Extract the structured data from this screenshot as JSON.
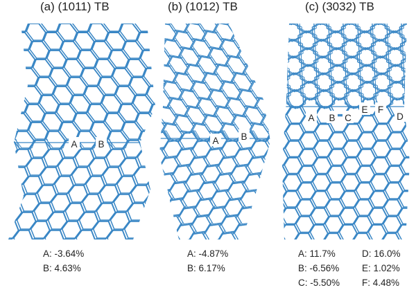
{
  "colors": {
    "lattice": "#3a87c5",
    "label_fill": "#ffffff",
    "text": "#222222"
  },
  "panels": [
    {
      "title_prefix": "(a) (10",
      "title_bar": "1",
      "title_suffix": "1) TB",
      "site_labels": [
        "A",
        "B"
      ],
      "strains": [
        "A: -3.64%",
        "B: 4.63%"
      ]
    },
    {
      "title_prefix": "(b) (10",
      "title_bar": "1",
      "title_suffix": "2) TB",
      "site_labels": [
        "A",
        "B"
      ],
      "strains": [
        "A: -4.87%",
        "B: 6.17%"
      ]
    },
    {
      "title_prefix": "(c) (30",
      "title_bar": "3",
      "title_suffix": "2) TB",
      "site_labels": [
        "A",
        "B",
        "C",
        "E",
        "F",
        "D"
      ],
      "strains": [
        "A: 11.7%",
        "D: 16.0%",
        "B: -6.56%",
        "E: 1.02%",
        "C: -5.50%",
        "F: 4.48%"
      ]
    }
  ]
}
